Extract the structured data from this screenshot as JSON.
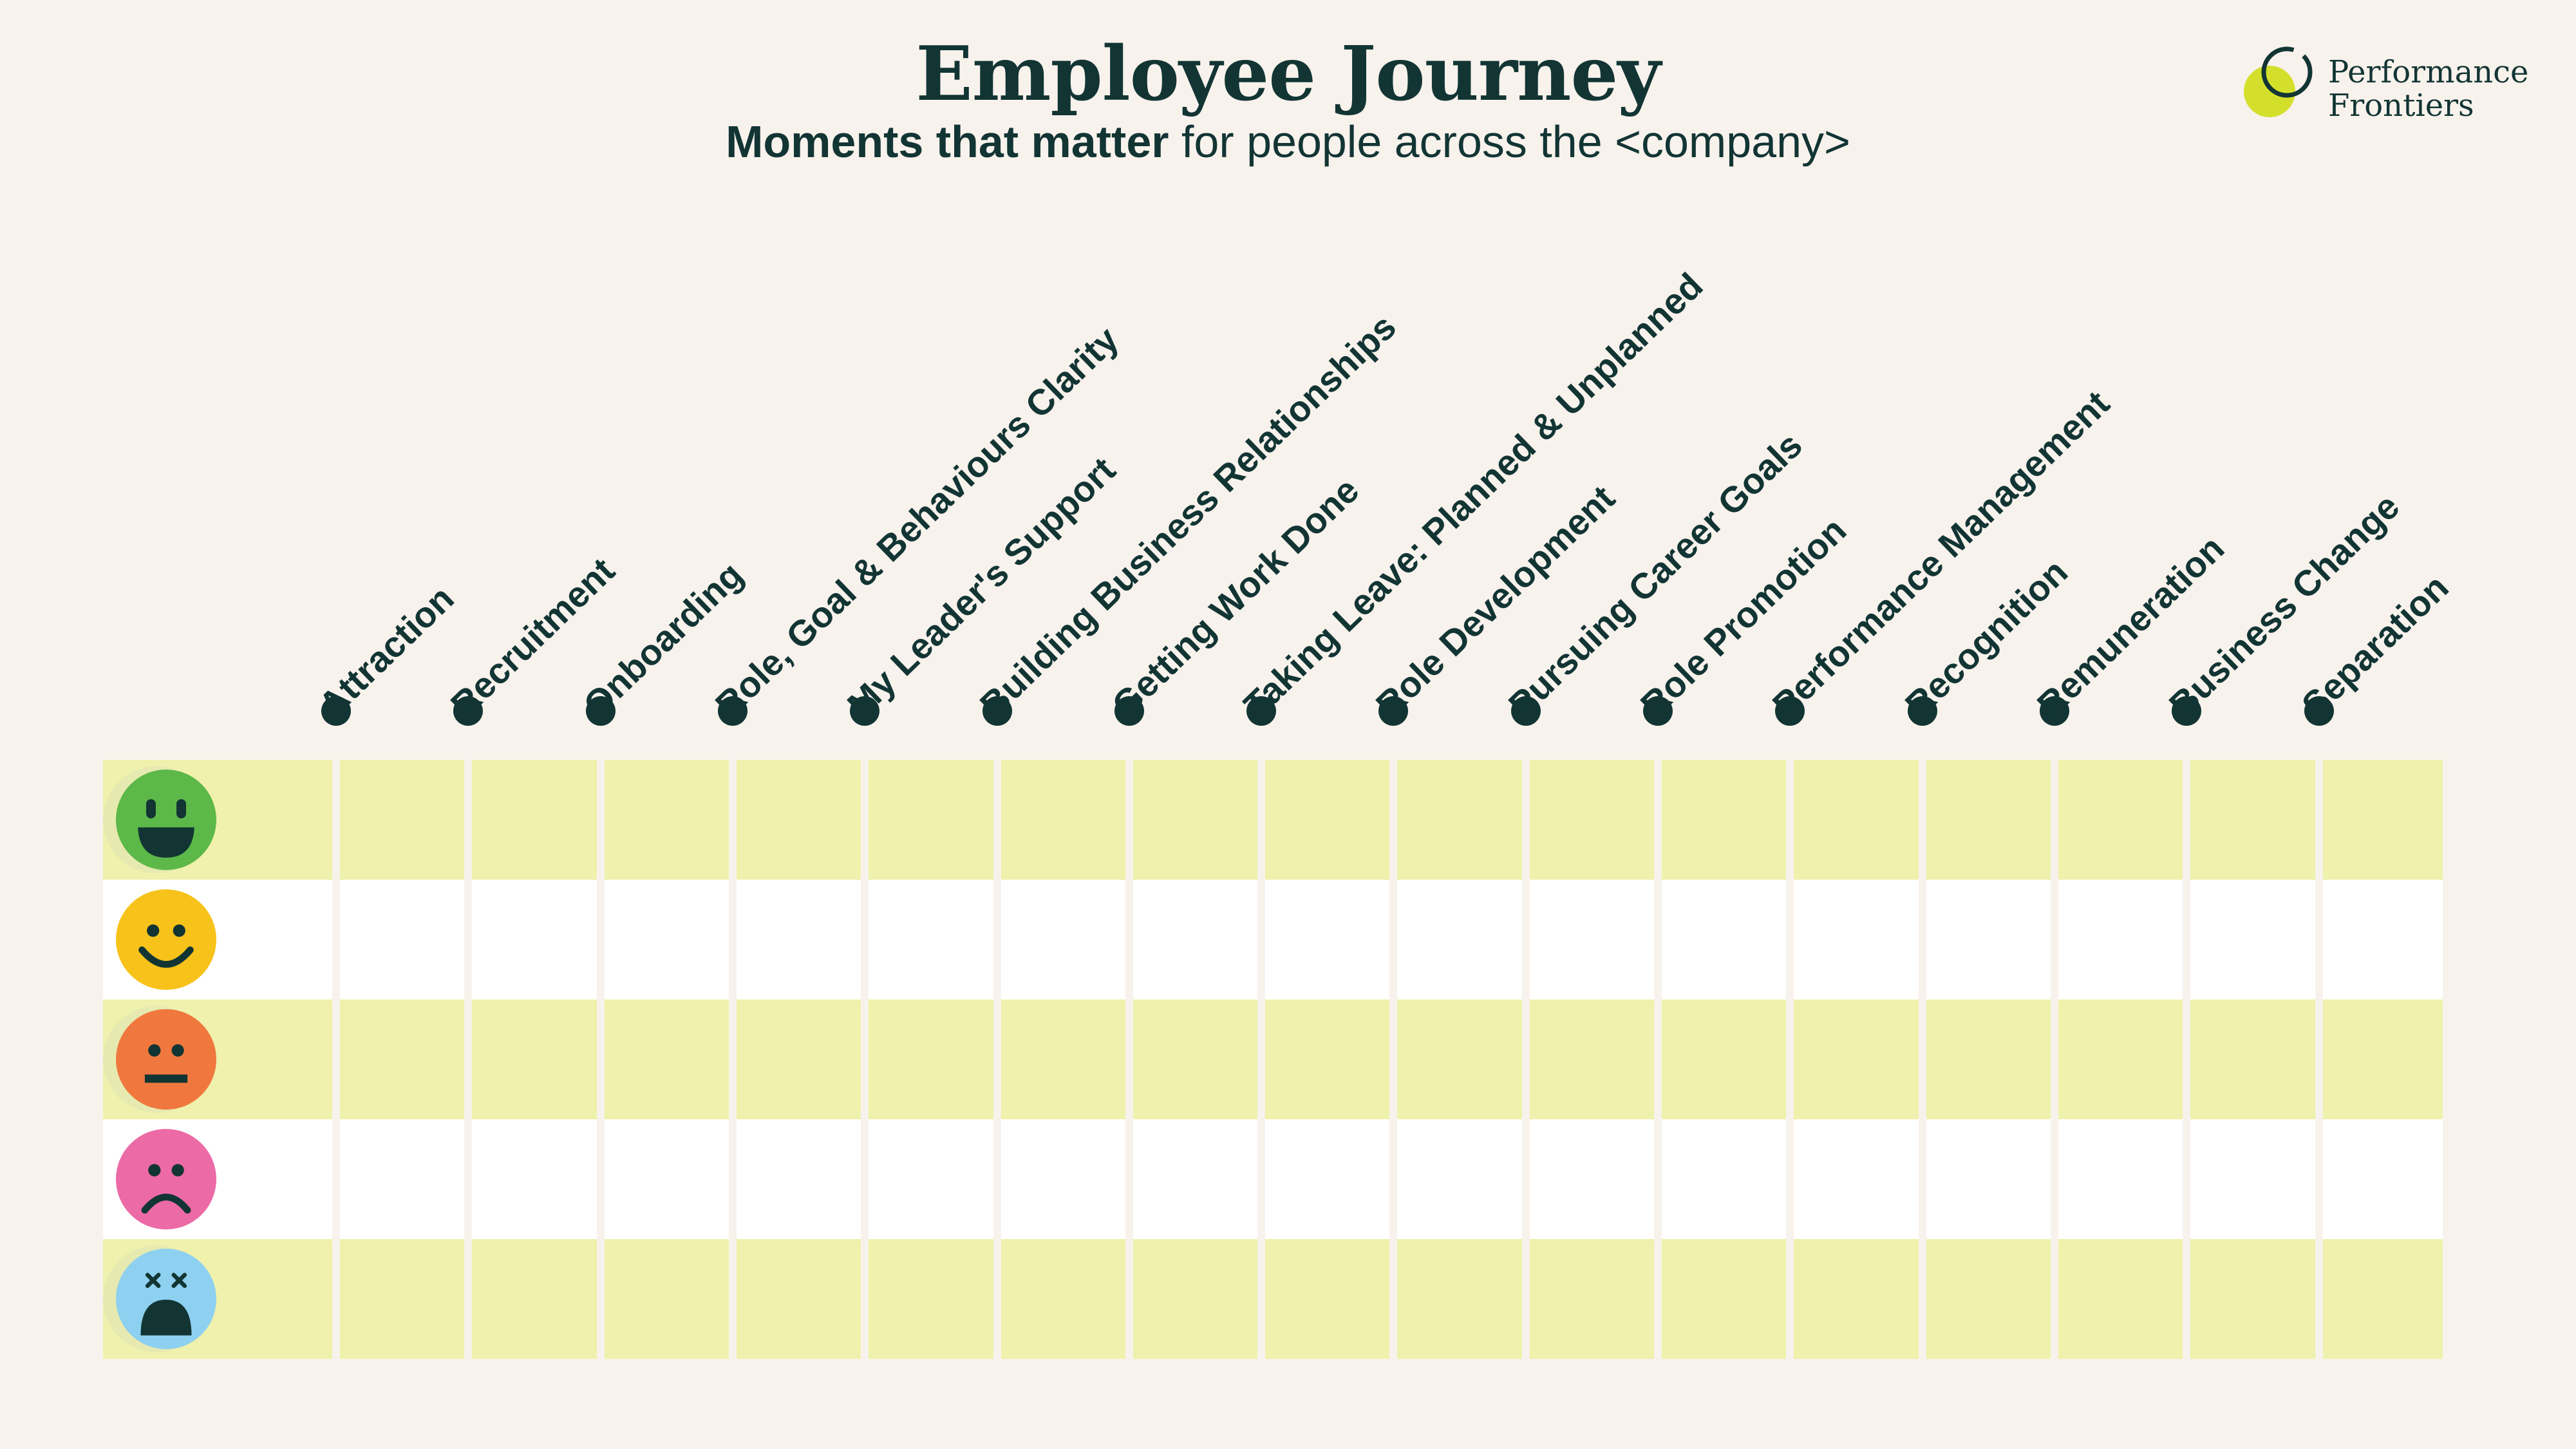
{
  "header": {
    "title": "Employee Journey",
    "subtitle_bold": "Moments that matter",
    "subtitle_rest": " for people across the <company>"
  },
  "logo": {
    "line1": "Performance",
    "line2": "Frontiers",
    "accent_color": "#d4df2b"
  },
  "stages": [
    "Attraction",
    "Recruitment",
    "Onboarding",
    "Role, Goal & Behaviours Clarity",
    "My Leader's Support",
    "Building Business Relationships",
    "Getting Work Done",
    "Taking Leave: Planned & Unplanned",
    "Role Development",
    "Pursuing Career Goals",
    "Role Promotion",
    "Performance Management",
    "Recognition",
    "Remuneration",
    "Business Change",
    "Separation"
  ],
  "rows": [
    {
      "mood": "very-happy",
      "icon": "grin-face-icon",
      "color": "#5cb848",
      "band": "lime"
    },
    {
      "mood": "happy",
      "icon": "smile-face-icon",
      "color": "#f7c21a",
      "band": "white"
    },
    {
      "mood": "neutral",
      "icon": "neutral-face-icon",
      "color": "#f0783f",
      "band": "lime"
    },
    {
      "mood": "sad",
      "icon": "frown-face-icon",
      "color": "#ec6aa6",
      "band": "white"
    },
    {
      "mood": "very-sad",
      "icon": "dizzy-face-icon",
      "color": "#8ed0ef",
      "band": "lime"
    }
  ],
  "colors": {
    "background": "#f8f2ec",
    "ink": "#123534",
    "band_lime": "#eff1ac",
    "band_white": "#ffffff"
  }
}
